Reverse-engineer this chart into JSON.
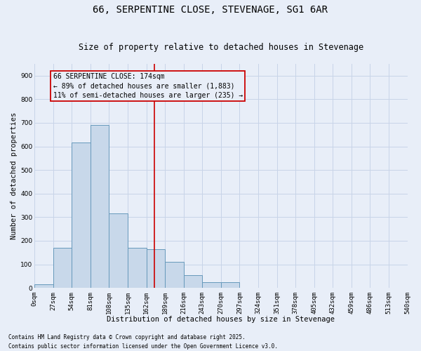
{
  "title": "66, SERPENTINE CLOSE, STEVENAGE, SG1 6AR",
  "subtitle": "Size of property relative to detached houses in Stevenage",
  "xlabel": "Distribution of detached houses by size in Stevenage",
  "ylabel": "Number of detached properties",
  "bin_edges": [
    0,
    27,
    54,
    81,
    108,
    135,
    162,
    189,
    216,
    243,
    270,
    297,
    324,
    351,
    378,
    405,
    432,
    459,
    486,
    513,
    540
  ],
  "bar_heights": [
    15,
    170,
    615,
    690,
    315,
    170,
    165,
    110,
    55,
    25,
    25,
    0,
    0,
    0,
    0,
    0,
    0,
    0,
    0,
    0
  ],
  "bar_color": "#c8d8ea",
  "bar_edge_color": "#6699bb",
  "vline_x": 174,
  "vline_color": "#cc0000",
  "annotation_line1": "66 SERPENTINE CLOSE: 174sqm",
  "annotation_line2": "← 89% of detached houses are smaller (1,883)",
  "annotation_line3": "11% of semi-detached houses are larger (235) →",
  "annotation_box_color": "#cc0000",
  "ylim": [
    0,
    950
  ],
  "yticks": [
    0,
    100,
    200,
    300,
    400,
    500,
    600,
    700,
    800,
    900
  ],
  "grid_color": "#c8d4e8",
  "bg_color": "#e8eef8",
  "footnote1": "Contains HM Land Registry data © Crown copyright and database right 2025.",
  "footnote2": "Contains public sector information licensed under the Open Government Licence v3.0.",
  "title_fontsize": 10,
  "subtitle_fontsize": 8.5,
  "axis_label_fontsize": 7.5,
  "tick_fontsize": 6.5,
  "annotation_fontsize": 7,
  "footnote_fontsize": 5.5
}
